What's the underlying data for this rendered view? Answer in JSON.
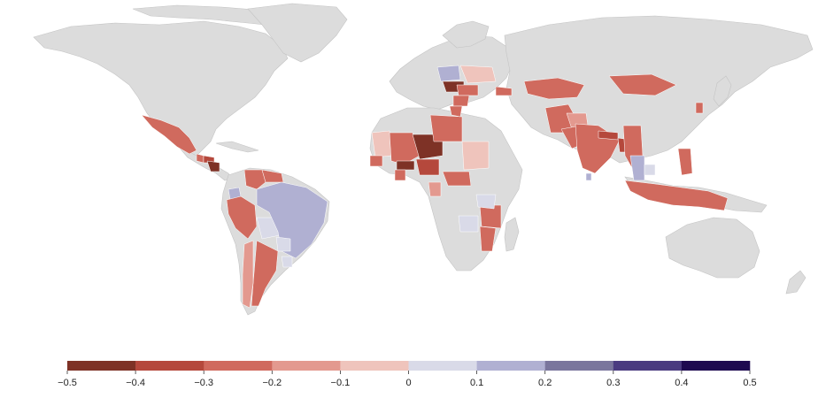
{
  "map": {
    "kind": "world-choropleth",
    "base_color": "#dcdcdc",
    "regions": [
      {
        "name": "Mexico",
        "value": -0.25
      },
      {
        "name": "Guatemala",
        "value": -0.3
      },
      {
        "name": "Honduras",
        "value": -0.35
      },
      {
        "name": "Nicaragua",
        "value": -0.45
      },
      {
        "name": "Colombia",
        "value": -0.2
      },
      {
        "name": "Venezuela",
        "value": -0.3
      },
      {
        "name": "Ecuador",
        "value": 0.15
      },
      {
        "name": "Peru",
        "value": -0.3
      },
      {
        "name": "Bolivia",
        "value": 0.05
      },
      {
        "name": "Brazil",
        "value": 0.15
      },
      {
        "name": "Paraguay",
        "value": 0.05
      },
      {
        "name": "Argentina",
        "value": -0.2
      },
      {
        "name": "Chile",
        "value": -0.15
      },
      {
        "name": "Uruguay",
        "value": 0.05
      },
      {
        "name": "Mauritania",
        "value": -0.1
      },
      {
        "name": "Mali",
        "value": -0.3
      },
      {
        "name": "Niger",
        "value": -0.4
      },
      {
        "name": "Nigeria",
        "value": -0.35
      },
      {
        "name": "Burkina Faso",
        "value": -0.45
      },
      {
        "name": "Ghana",
        "value": -0.3
      },
      {
        "name": "Senegal",
        "value": -0.2
      },
      {
        "name": "Libya",
        "value": -0.2
      },
      {
        "name": "Sudan",
        "value": -0.1
      },
      {
        "name": "Ethiopia",
        "value": -0.2
      },
      {
        "name": "Tanzania",
        "value": -0.2
      },
      {
        "name": "Kenya",
        "value": 0.05
      },
      {
        "name": "Mozambique",
        "value": -0.25
      },
      {
        "name": "Zambia",
        "value": 0.05
      },
      {
        "name": "Cameroon",
        "value": -0.15
      },
      {
        "name": "Poland",
        "value": 0.15
      },
      {
        "name": "Ukraine",
        "value": -0.1
      },
      {
        "name": "Hungary",
        "value": -0.45
      },
      {
        "name": "Romania",
        "value": -0.3
      },
      {
        "name": "Bulgaria",
        "value": -0.2
      },
      {
        "name": "Greece",
        "value": -0.2
      },
      {
        "name": "Georgia",
        "value": -0.3
      },
      {
        "name": "Iran",
        "value": -0.2
      },
      {
        "name": "Afghanistan",
        "value": -0.15
      },
      {
        "name": "Pakistan",
        "value": -0.2
      },
      {
        "name": "India",
        "value": -0.3
      },
      {
        "name": "Nepal",
        "value": -0.35
      },
      {
        "name": "Bangladesh",
        "value": -0.35
      },
      {
        "name": "Myanmar",
        "value": -0.3
      },
      {
        "name": "Thailand",
        "value": 0.15
      },
      {
        "name": "Cambodia",
        "value": 0.1
      },
      {
        "name": "Sri Lanka",
        "value": 0.15
      },
      {
        "name": "Philippines",
        "value": -0.3
      },
      {
        "name": "Indonesia",
        "value": -0.3
      },
      {
        "name": "Mongolia",
        "value": -0.2
      },
      {
        "name": "Kazakhstan",
        "value": -0.2
      },
      {
        "name": "Taiwan",
        "value": -0.3
      }
    ]
  },
  "legend": {
    "colors": [
      "#7e3226",
      "#b5483c",
      "#d06a5e",
      "#e3998f",
      "#efc4bc",
      "#d9dae8",
      "#b0b0d2",
      "#7a769d",
      "#4a3b80",
      "#1e0a50"
    ],
    "ticks": [
      "−0.5",
      "−0.4",
      "−0.3",
      "−0.2",
      "−0.1",
      "0",
      "0.1",
      "0.2",
      "0.3",
      "0.4",
      "0.5"
    ]
  }
}
